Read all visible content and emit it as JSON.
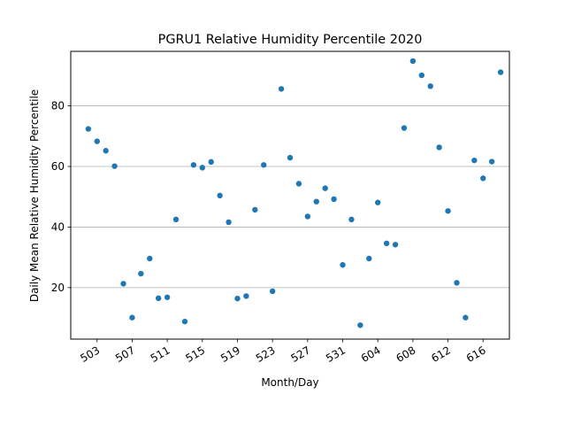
{
  "chart_data": {
    "type": "scatter",
    "title": "PGRU1 Relative Humidity Percentile 2020",
    "xlabel": "Month/Day",
    "ylabel": "Daily Mean Relative Humidity Percentile",
    "xlim": [
      -1,
      49
    ],
    "ylim": [
      3,
      98
    ],
    "grid": "y-major",
    "marker_color": "#1f77b4",
    "x_ticks": [
      {
        "x": 2,
        "label": "503"
      },
      {
        "x": 6,
        "label": "507"
      },
      {
        "x": 10,
        "label": "511"
      },
      {
        "x": 14,
        "label": "515"
      },
      {
        "x": 18,
        "label": "519"
      },
      {
        "x": 22,
        "label": "523"
      },
      {
        "x": 26,
        "label": "527"
      },
      {
        "x": 30,
        "label": "531"
      },
      {
        "x": 34,
        "label": "604"
      },
      {
        "x": 38,
        "label": "608"
      },
      {
        "x": 42,
        "label": "612"
      },
      {
        "x": 46,
        "label": "616"
      }
    ],
    "y_ticks": [
      20,
      40,
      60,
      80
    ],
    "x": [
      1,
      2,
      3,
      4,
      5,
      6,
      7,
      8,
      9,
      10,
      11,
      12,
      13,
      14,
      15,
      16,
      17,
      18,
      19,
      20,
      21,
      22,
      23,
      24,
      25,
      26,
      27,
      28,
      29,
      30,
      31,
      32,
      33,
      34,
      35,
      36,
      37,
      38,
      39,
      40,
      41,
      42,
      43,
      44,
      45,
      46,
      47,
      48
    ],
    "y": [
      72.4,
      68.3,
      65.2,
      60.1,
      21.3,
      10.1,
      24.6,
      29.6,
      16.5,
      16.8,
      42.5,
      8.8,
      60.5,
      59.6,
      61.5,
      50.4,
      41.6,
      16.4,
      17.2,
      45.7,
      60.5,
      18.8,
      85.6,
      62.9,
      54.3,
      43.5,
      48.4,
      52.8,
      49.2,
      27.5,
      42.5,
      7.6,
      29.6,
      48.1,
      34.6,
      34.2,
      72.7,
      94.8,
      90.1,
      86.5,
      66.3,
      45.3,
      21.6,
      10.1,
      62,
      56.1,
      61.6,
      91.1
    ]
  }
}
